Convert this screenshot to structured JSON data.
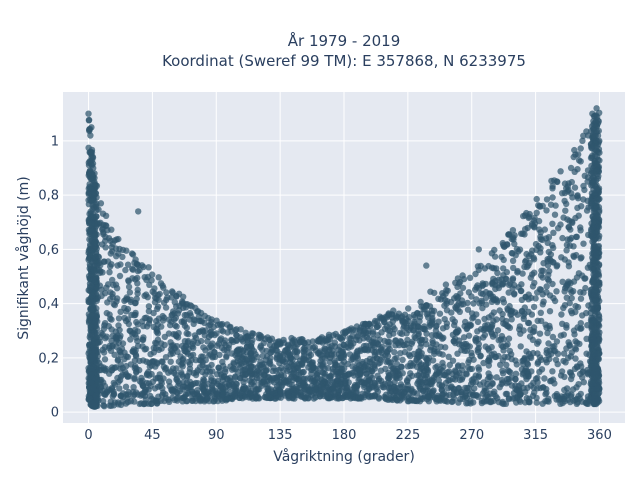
{
  "chart_data": {
    "type": "scatter",
    "title_line1": "År 1979 - 2019",
    "title_line2": "Koordinat (Sweref 99 TM): E 357868, N 6233975",
    "xlabel": "Vågriktning (grader)",
    "ylabel": "Signifikant våghöjd (m)",
    "xlim": [
      -18,
      378
    ],
    "ylim": [
      -0.04,
      1.18
    ],
    "x_ticks": [
      0,
      45,
      90,
      135,
      180,
      225,
      270,
      315,
      360
    ],
    "x_tick_labels": [
      "0",
      "45",
      "90",
      "135",
      "180",
      "225",
      "270",
      "315",
      "360"
    ],
    "y_ticks": [
      0,
      0.2,
      0.4,
      0.6,
      0.8,
      1
    ],
    "y_tick_labels": [
      "0",
      "0,2",
      "0,4",
      "0,6",
      "0,8",
      "1"
    ],
    "grid": true,
    "marker_color": "#2f566e",
    "background_color": "#e5e9f1",
    "grid_color": "#ffffff",
    "envelope": {
      "x": [
        0,
        5,
        15,
        30,
        45,
        60,
        75,
        90,
        110,
        135,
        160,
        180,
        200,
        225,
        250,
        270,
        290,
        315,
        335,
        350,
        360
      ],
      "y_upper": [
        1.1,
        0.85,
        0.68,
        0.6,
        0.52,
        0.45,
        0.4,
        0.34,
        0.3,
        0.27,
        0.28,
        0.3,
        0.34,
        0.4,
        0.47,
        0.52,
        0.62,
        0.78,
        0.92,
        1.05,
        1.12
      ],
      "y_lower": [
        0.02,
        0.02,
        0.02,
        0.03,
        0.03,
        0.04,
        0.04,
        0.04,
        0.05,
        0.05,
        0.05,
        0.05,
        0.05,
        0.04,
        0.04,
        0.03,
        0.03,
        0.03,
        0.03,
        0.03,
        0.03
      ]
    },
    "notable_points": {
      "x": [
        0,
        2,
        35,
        238,
        275,
        300,
        320,
        330,
        340,
        345,
        348,
        352,
        355,
        358
      ],
      "y": [
        1.1,
        1.05,
        0.74,
        0.54,
        0.6,
        0.62,
        0.76,
        0.85,
        0.9,
        0.95,
        1.0,
        1.02,
        1.1,
        1.12
      ]
    }
  }
}
